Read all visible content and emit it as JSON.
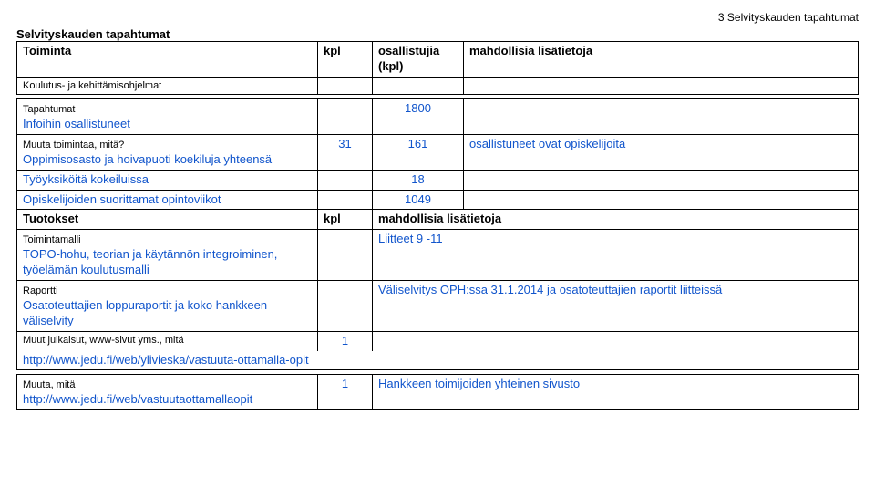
{
  "page_number_label": "3 Selvityskauden tapahtumat",
  "section_title": "Selvityskauden tapahtumat",
  "head": {
    "col1": "Toiminta",
    "col2": "kpl",
    "col3": "osallistujia (kpl)",
    "col4": "mahdollisia lisätietoja"
  },
  "row_koulutus": "Koulutus- ja kehittämisohjelmat",
  "row_tapahtumat": {
    "label": "Tapahtumat",
    "sub": "Infoihin osallistuneet",
    "participants": "1800"
  },
  "row_muuta_toim": {
    "label": "Muuta toimintaa, mitä?",
    "sub": "Oppimisosasto ja hoivapuoti koekiluja yhteensä",
    "kpl": "31",
    "participants": "161",
    "note": "osallistuneet ovat opiskelijoita"
  },
  "row_tyoyksik": {
    "label": "Työyksiköitä kokeiluissa",
    "participants": "18"
  },
  "row_opiskelijoiden": {
    "label": "Opiskelijoiden suorittamat opintoviikot",
    "participants": "1049"
  },
  "row_tuotokset": {
    "label": "Tuotokset",
    "col2": "kpl",
    "col4": "mahdollisia lisätietoja"
  },
  "row_toimintamalli": {
    "label": "Toimintamalli",
    "sub": "TOPO-hohu, teorian ja käytännön integroiminen, työelämän koulutusmalli",
    "note": "Liitteet 9 -11"
  },
  "row_raportti": {
    "label": "Raportti",
    "sub": "Osatoteuttajien loppuraportit ja koko hankkeen väliselvity",
    "note": "Väliselvitys OPH:ssa 31.1.2014 ja osatoteuttajien raportit liitteissä"
  },
  "row_muut_julk": {
    "label": "Muut julkaisut, www-sivut yms., mitä",
    "kpl": "1"
  },
  "row_url1": "http://www.jedu.fi/web/ylivieska/vastuuta-ottamalla-opit",
  "row_muuta_mita": {
    "label": "Muuta, mitä",
    "sub": "http://www.jedu.fi/web/vastuutaottamallaopit",
    "kpl": "1",
    "note": "Hankkeen toimijoiden yhteinen sivusto"
  }
}
